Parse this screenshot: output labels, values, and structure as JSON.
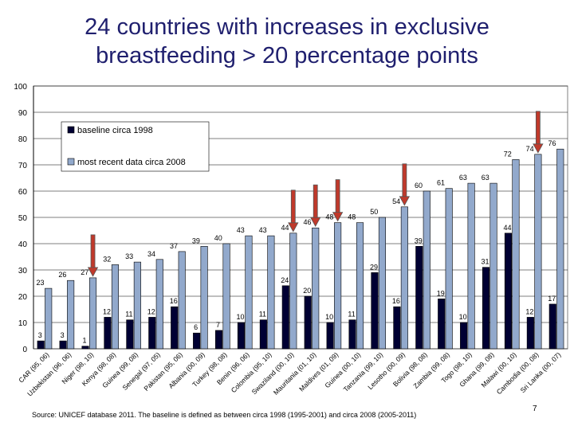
{
  "title_line1": "24 countries with increases in exclusive",
  "title_line2": "breastfeeding > 20 percentage points",
  "source": "Source: UNICEF database 2011. The baseline is defined as between circa 1998 (1995-2001) and circa 2008 (2005-2011)",
  "page_number": "7",
  "chart_data": {
    "type": "bar",
    "ylim": [
      0,
      100
    ],
    "yticks": [
      0,
      10,
      20,
      30,
      40,
      50,
      60,
      70,
      80,
      90,
      100
    ],
    "grid": true,
    "legend_position": "top-left",
    "categories": [
      "CAR (95, 06)",
      "Uzbekistan (96, 06)",
      "Niger (98, 10)",
      "Kenya (98, 08)",
      "Guinea (99, 08)",
      "Senegal (97, 05)",
      "Pakistan (95, 06)",
      "Albania (00, 09)",
      "Turkey (98, 08)",
      "Benin (96, 06)",
      "Colombia (95, 10)",
      "Swaziland (00, 10)",
      "Mauritania (01, 10)",
      "Maldives (01, 09)",
      "Guinea (00, 10)",
      "Tanzania (99, 10)",
      "Lesotho (00, 09)",
      "Bolivia (98, 08)",
      "Zambia (99, 08)",
      "Togo (98, 10)",
      "Ghana (99, 08)",
      "Malawi (00, 10)",
      "Cambodia (00, 08)",
      "Sri Lanka (00, 07)"
    ],
    "series": [
      {
        "name": "baseline circa 1998",
        "color": "#000033",
        "values": [
          3,
          3,
          1,
          12,
          11,
          12,
          16,
          6,
          7,
          10,
          11,
          24,
          20,
          10,
          11,
          29,
          16,
          39,
          19,
          10,
          31,
          44,
          12,
          17
        ]
      },
      {
        "name": "most recent data circa 2008",
        "color": "#92a9cc",
        "values": [
          23,
          26,
          27,
          32,
          33,
          34,
          37,
          39,
          40,
          43,
          43,
          44,
          46,
          48,
          48,
          50,
          54,
          60,
          61,
          63,
          63,
          72,
          74,
          76
        ]
      }
    ],
    "printed_recent_labels": [
      "23",
      "26",
      "27",
      "32",
      "33",
      "34",
      "37",
      "39",
      "40",
      "43",
      "43",
      "44",
      "46",
      "48",
      "48",
      "50",
      "54",
      "60",
      "61",
      "63",
      "63",
      "72",
      "74",
      "76"
    ],
    "printed_baseline_labels": [
      "3",
      "3",
      "1",
      "12",
      "11",
      "12",
      "16",
      "6",
      "7",
      "10",
      "11",
      "24",
      "20",
      "10",
      "11",
      "29",
      "16",
      "39",
      "19",
      "10",
      "31",
      "44",
      "12",
      "17"
    ],
    "highlighted_categories": [
      2,
      11,
      12,
      13,
      16,
      22
    ],
    "arrow_color": "#c0392b"
  }
}
